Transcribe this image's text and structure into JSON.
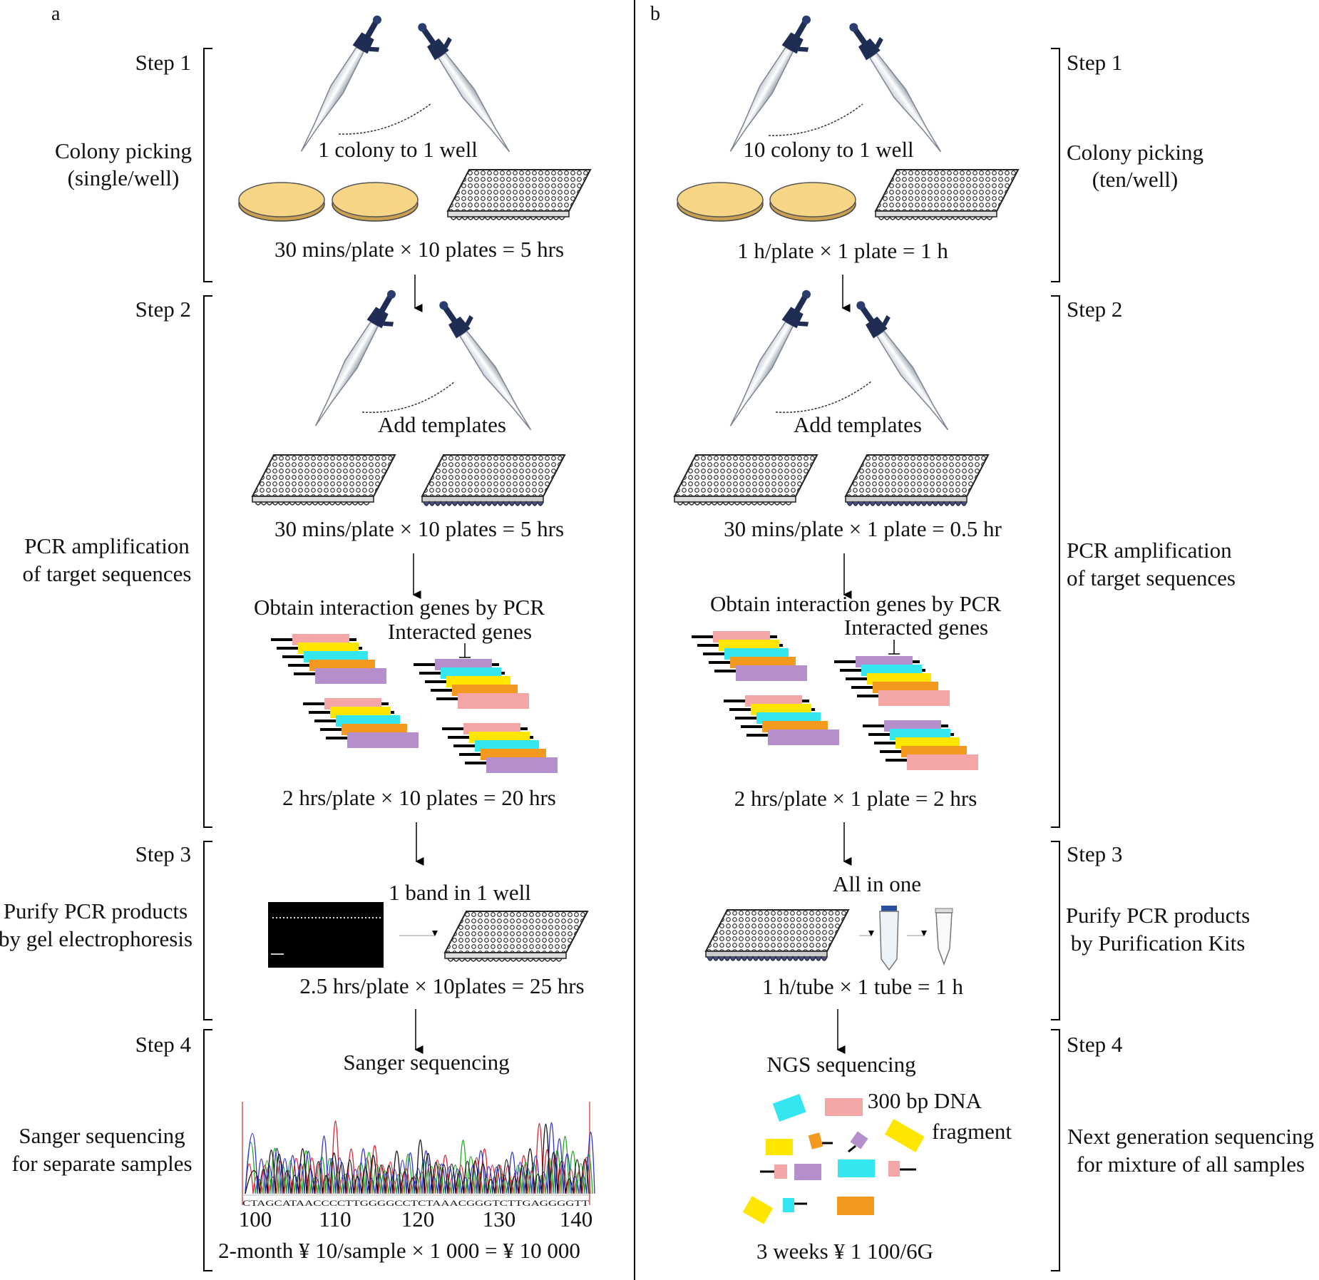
{
  "panel_a": {
    "letter": "a",
    "steps": [
      {
        "step": "Step 1",
        "desc_1": "Colony picking",
        "desc_2": "(single/well)"
      },
      {
        "step": "Step 2",
        "desc_1": "PCR amplification",
        "desc_2": "of target sequences"
      },
      {
        "step": "Step 3",
        "desc_1": "Purify PCR products",
        "desc_2": "by gel electrophoresis"
      },
      {
        "step": "Step 4",
        "desc_1": "Sanger sequencing",
        "desc_2": "for separate samples"
      }
    ],
    "s1_caption": "1 colony to 1 well",
    "s1_time": "30 mins/plate × 10 plates = 5 hrs",
    "s2_caption": "Add templates",
    "s2_time": "30 mins/plate × 10 plates = 5 hrs",
    "s2_obtain": "Obtain interaction genes by PCR",
    "s2_genes": "Interacted genes",
    "s2_time2": "2 hrs/plate × 10 plates = 20 hrs",
    "s3_caption": "1 band in 1 well",
    "s3_time": "2.5 hrs/plate × 10plates = 25 hrs",
    "s4_caption": "Sanger sequencing",
    "s4_sequence": "CTAGCATAACCCCTTGGGGCCTCTAAACGGGTCTTGAGGGGTT",
    "s4_ticks": [
      "100",
      "110",
      "120",
      "130",
      "140"
    ],
    "s4_cost": "2-month ¥ 10/sample × 1 000 = ¥ 10 000"
  },
  "panel_b": {
    "letter": "b",
    "steps": [
      {
        "step": "Step 1",
        "desc_1": "Colony picking",
        "desc_2": "(ten/well)"
      },
      {
        "step": "Step 2",
        "desc_1": "PCR amplification",
        "desc_2": "of target sequences"
      },
      {
        "step": "Step 3",
        "desc_1": "Purify PCR products",
        "desc_2": "by Purification Kits"
      },
      {
        "step": "Step 4",
        "desc_1": "Next generation sequencing",
        "desc_2": "for mixture of all samples"
      }
    ],
    "s1_caption": "10 colony to 1 well",
    "s1_time": "1 h/plate × 1 plate = 1 h",
    "s2_caption": "Add templates",
    "s2_time": "30 mins/plate × 1 plate = 0.5 hr",
    "s2_obtain": "Obtain interaction genes by PCR",
    "s2_genes": "Interacted genes",
    "s2_time2": "2 hrs/plate × 1 plate = 2 hrs",
    "s3_caption": "All in one",
    "s3_time": "1 h/tube × 1 tube = 1 h",
    "s4_caption": "NGS sequencing",
    "s4_dna_1": "300 bp DNA",
    "s4_dna_2": "fragment",
    "s4_cost": "3 weeks ¥ 1 100/6G"
  },
  "colors": {
    "pink": "#f4a6a6",
    "yellow": "#ffe600",
    "cyan": "#33e6f0",
    "orange": "#f39a1e",
    "purple": "#b48fcb",
    "plate": "#f5d27a"
  }
}
